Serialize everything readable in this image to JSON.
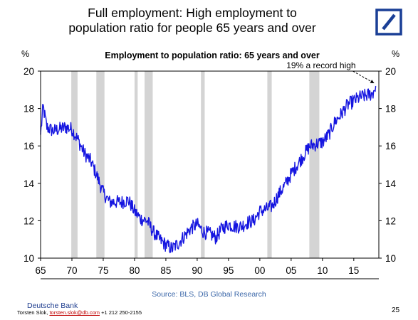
{
  "header": {
    "title_line1": "Full employment: High employment to",
    "title_line2": "population ratio for people 65 years and over"
  },
  "footer": {
    "source": "Source: BLS, DB Global Research",
    "bank": "Deutsche Bank",
    "author": "Torsten Slok, ",
    "email": "torsten.slok@db.com",
    "phone": " +1 212 250-2155",
    "page": "25"
  },
  "colors": {
    "series": "#1515e0",
    "recession": "#d4d4d4",
    "brand": "#1a3f96"
  },
  "chart_data": {
    "type": "line",
    "title": "Employment to population ratio: 65 years and over",
    "ylabel_left": "%",
    "ylabel_right": "%",
    "ylim": [
      10,
      20
    ],
    "yticks": [
      10,
      12,
      14,
      16,
      18,
      20
    ],
    "xlim": [
      1965,
      2019
    ],
    "xticks": [
      1965,
      1970,
      1975,
      1980,
      1985,
      1990,
      1995,
      2000,
      2005,
      2010,
      2015
    ],
    "xtick_labels": [
      "65",
      "70",
      "75",
      "80",
      "85",
      "90",
      "95",
      "00",
      "05",
      "10",
      "15"
    ],
    "grid": false,
    "annotation": {
      "text": "19% a record high",
      "x": 2018.5,
      "y": 19.2
    },
    "recessions": [
      [
        1969.9,
        1970.9
      ],
      [
        1973.9,
        1975.2
      ],
      [
        1980.0,
        1980.5
      ],
      [
        1981.6,
        1982.9
      ],
      [
        1990.6,
        1991.2
      ],
      [
        2001.2,
        2001.9
      ],
      [
        2007.9,
        2009.5
      ]
    ],
    "series": [
      {
        "values": [
          [
            1965.0,
            16.6
          ],
          [
            1965.4,
            18.1
          ],
          [
            1966.0,
            17.0
          ],
          [
            1967.0,
            16.8
          ],
          [
            1968.0,
            16.9
          ],
          [
            1969.0,
            17.0
          ],
          [
            1970.0,
            16.9
          ],
          [
            1971.0,
            16.3
          ],
          [
            1972.0,
            15.6
          ],
          [
            1973.0,
            15.2
          ],
          [
            1974.0,
            14.4
          ],
          [
            1975.0,
            13.5
          ],
          [
            1976.0,
            13.0
          ],
          [
            1977.0,
            13.0
          ],
          [
            1978.0,
            13.0
          ],
          [
            1979.0,
            13.1
          ],
          [
            1980.0,
            12.5
          ],
          [
            1981.0,
            12.1
          ],
          [
            1982.0,
            12.0
          ],
          [
            1983.0,
            11.4
          ],
          [
            1984.0,
            11.0
          ],
          [
            1985.0,
            10.7
          ],
          [
            1986.0,
            10.5
          ],
          [
            1987.0,
            10.8
          ],
          [
            1988.0,
            11.2
          ],
          [
            1989.0,
            11.6
          ],
          [
            1990.0,
            11.8
          ],
          [
            1991.0,
            11.4
          ],
          [
            1992.0,
            11.3
          ],
          [
            1993.0,
            11.1
          ],
          [
            1994.0,
            11.6
          ],
          [
            1995.0,
            11.8
          ],
          [
            1996.0,
            11.7
          ],
          [
            1997.0,
            11.7
          ],
          [
            1998.0,
            11.9
          ],
          [
            1999.0,
            12.0
          ],
          [
            2000.0,
            12.5
          ],
          [
            2001.0,
            12.6
          ],
          [
            2002.0,
            12.8
          ],
          [
            2003.0,
            13.4
          ],
          [
            2004.0,
            13.9
          ],
          [
            2005.0,
            14.5
          ],
          [
            2006.0,
            15.0
          ],
          [
            2007.0,
            15.5
          ],
          [
            2008.0,
            16.0
          ],
          [
            2009.0,
            16.1
          ],
          [
            2010.0,
            16.2
          ],
          [
            2011.0,
            16.6
          ],
          [
            2012.0,
            17.3
          ],
          [
            2013.0,
            17.7
          ],
          [
            2014.0,
            18.2
          ],
          [
            2015.0,
            18.4
          ],
          [
            2016.0,
            18.6
          ],
          [
            2017.0,
            18.7
          ],
          [
            2018.0,
            18.8
          ],
          [
            2018.5,
            19.2
          ]
        ]
      }
    ]
  }
}
